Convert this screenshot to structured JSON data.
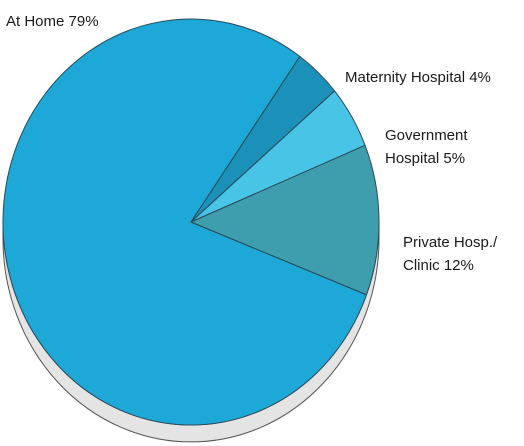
{
  "chart_data": {
    "type": "pie",
    "style": "3d",
    "slices": [
      {
        "label": "At Home 79%",
        "value": 79,
        "color": "#1ea8d8"
      },
      {
        "label": "Maternity Hospital 4%",
        "value": 4,
        "color": "#1b90b8"
      },
      {
        "label": [
          "Government",
          "Hospital 5%"
        ],
        "value": 5,
        "color": "#48c4e6"
      },
      {
        "label": [
          "Private Hosp./",
          "Clinic 12%"
        ],
        "value": 12,
        "color": "#3f9ead"
      }
    ],
    "side_color": "#e4e4e4"
  }
}
